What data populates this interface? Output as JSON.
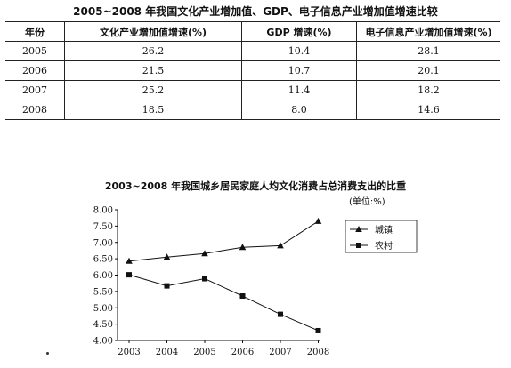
{
  "table": {
    "title": "2005~2008 年我国文化产业增加值、GDP、电子信息产业增加值增速比较",
    "headers": [
      "年份",
      "文化产业增加值增速(%)",
      "GDP 增速(%)",
      "电子信息产业增加值增速(%)"
    ],
    "rows": [
      [
        "2005",
        "26.2",
        "10.4",
        "28.1"
      ],
      [
        "2006",
        "21.5",
        "10.7",
        "20.1"
      ],
      [
        "2007",
        "25.2",
        "11.4",
        "18.2"
      ],
      [
        "2008",
        "18.5",
        "8.0",
        "14.6"
      ]
    ]
  },
  "chart_data": [
    {
      "type": "table",
      "title": "2005~2008 年我国文化产业增加值、GDP、电子信息产业增加值增速比较",
      "columns": [
        "年份",
        "文化产业增加值增速(%)",
        "GDP 增速(%)",
        "电子信息产业增加值增速(%)"
      ],
      "rows": [
        [
          "2005",
          26.2,
          10.4,
          28.1
        ],
        [
          "2006",
          21.5,
          10.7,
          20.1
        ],
        [
          "2007",
          25.2,
          11.4,
          18.2
        ],
        [
          "2008",
          18.5,
          8.0,
          14.6
        ]
      ]
    },
    {
      "type": "line",
      "title": "2003~2008 年我国城乡居民家庭人均文化消费占总消费支出的比重",
      "unit": "(单位:%)",
      "x": [
        "2003",
        "2004",
        "2005",
        "2006",
        "2007",
        "2008"
      ],
      "ylim": [
        4.0,
        8.0
      ],
      "yticks": [
        "8.00",
        "7.50",
        "7.00",
        "6.50",
        "6.00",
        "5.50",
        "5.00",
        "4.50",
        "4.00"
      ],
      "grid": false,
      "legend": "right",
      "series": [
        {
          "name": "城镇",
          "marker": "triangle",
          "values": [
            6.43,
            6.55,
            6.66,
            6.85,
            6.9,
            7.65
          ]
        },
        {
          "name": "农村",
          "marker": "square",
          "values": [
            6.01,
            5.67,
            5.89,
            5.36,
            4.8,
            4.3
          ]
        }
      ]
    }
  ]
}
